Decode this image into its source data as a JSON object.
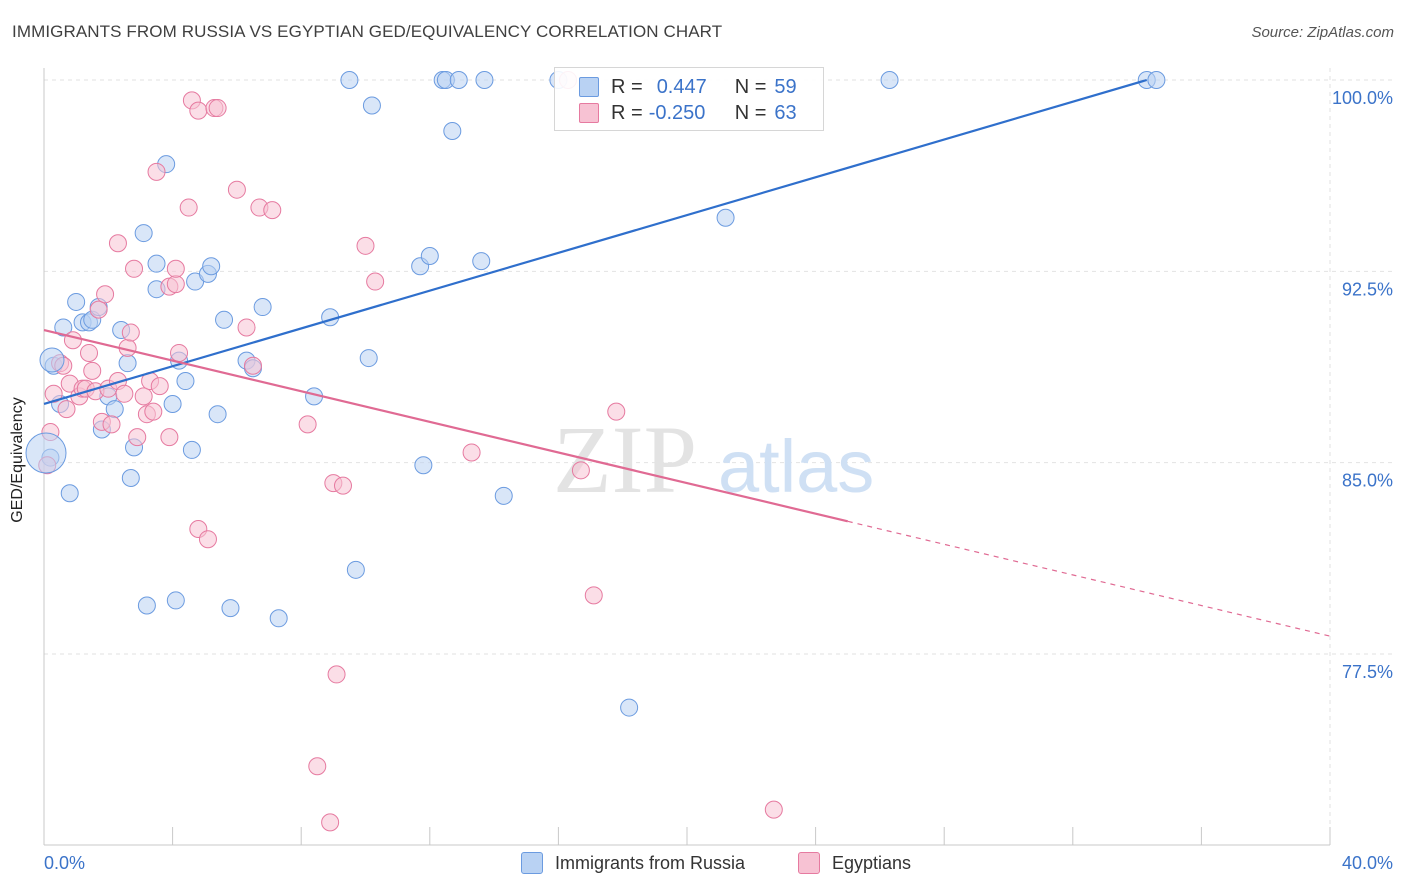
{
  "header": {
    "title": "IMMIGRANTS FROM RUSSIA VS EGYPTIAN GED/EQUIVALENCY CORRELATION CHART",
    "source": "Source: ZipAtlas.com"
  },
  "legend": {
    "r_label": "R =",
    "n_label": "N =",
    "series": [
      {
        "name": "Immigrants from Russia",
        "r": "0.447",
        "n": "59",
        "color": "#6b9be0",
        "fill": "#b9d2f3"
      },
      {
        "name": "Egyptians",
        "r": "-0.250",
        "n": "63",
        "color": "#e67aa0",
        "fill": "#f7c2d3"
      }
    ]
  },
  "colors": {
    "blue_line": "#2f6fcc",
    "pink_line": "#e06a93",
    "axis_text": "#3b73c9",
    "grid": "#e2e2e2"
  },
  "watermark": {
    "part1": "ZIP",
    "part2": "atlas"
  },
  "chart_data": {
    "type": "scatter",
    "title": "IMMIGRANTS FROM RUSSIA VS EGYPTIAN GED/EQUIVALENCY CORRELATION CHART",
    "xlabel": "",
    "ylabel": "GED/Equivalency",
    "xlim": [
      0,
      40
    ],
    "ylim": [
      70.5,
      101.5
    ],
    "x_tick_labels": [
      "0.0%",
      "40.0%"
    ],
    "y_ticks": [
      77.5,
      85.0,
      92.5,
      100.0
    ],
    "y_tick_labels": [
      "77.5%",
      "85.0%",
      "92.5%",
      "100.0%"
    ],
    "grid": true,
    "legend_position": "top-center",
    "series": [
      {
        "name": "Immigrants from Russia",
        "r": 0.447,
        "n": 59,
        "trend": {
          "x": [
            0.0,
            34.3
          ],
          "y": [
            87.3,
            100.0
          ]
        },
        "points": [
          [
            0.2,
            85.2
          ],
          [
            0.3,
            88.8
          ],
          [
            0.5,
            87.3
          ],
          [
            0.6,
            90.3
          ],
          [
            0.8,
            83.8
          ],
          [
            1.0,
            91.3
          ],
          [
            1.2,
            90.5
          ],
          [
            1.4,
            90.5
          ],
          [
            1.5,
            90.6
          ],
          [
            1.7,
            91.1
          ],
          [
            1.8,
            86.3
          ],
          [
            2.0,
            87.6
          ],
          [
            2.2,
            87.1
          ],
          [
            2.4,
            90.2
          ],
          [
            2.6,
            88.9
          ],
          [
            2.7,
            84.4
          ],
          [
            2.8,
            85.6
          ],
          [
            3.1,
            94.0
          ],
          [
            3.2,
            79.4
          ],
          [
            3.5,
            91.8
          ],
          [
            3.5,
            92.8
          ],
          [
            3.8,
            96.7
          ],
          [
            4.0,
            87.3
          ],
          [
            4.1,
            79.6
          ],
          [
            4.2,
            89.0
          ],
          [
            4.4,
            88.2
          ],
          [
            4.6,
            85.5
          ],
          [
            4.7,
            92.1
          ],
          [
            5.1,
            92.4
          ],
          [
            5.2,
            92.7
          ],
          [
            5.4,
            86.9
          ],
          [
            5.6,
            90.6
          ],
          [
            5.8,
            79.3
          ],
          [
            6.3,
            89.0
          ],
          [
            6.5,
            88.7
          ],
          [
            6.8,
            91.1
          ],
          [
            7.3,
            78.9
          ],
          [
            8.4,
            87.6
          ],
          [
            8.9,
            90.7
          ],
          [
            9.5,
            100.0
          ],
          [
            9.7,
            80.8
          ],
          [
            10.1,
            89.1
          ],
          [
            10.2,
            99.0
          ],
          [
            11.7,
            92.7
          ],
          [
            11.8,
            84.9
          ],
          [
            12.0,
            93.1
          ],
          [
            12.4,
            100.0
          ],
          [
            12.5,
            100.0
          ],
          [
            12.7,
            98.0
          ],
          [
            12.9,
            100.0
          ],
          [
            13.6,
            92.9
          ],
          [
            13.7,
            100.0
          ],
          [
            14.3,
            83.7
          ],
          [
            16.0,
            100.0
          ],
          [
            18.2,
            75.4
          ],
          [
            21.2,
            94.6
          ],
          [
            26.3,
            100.0
          ],
          [
            34.3,
            100.0
          ],
          [
            34.6,
            100.0
          ]
        ]
      },
      {
        "name": "Egyptians",
        "r": -0.25,
        "n": 63,
        "trend": {
          "x": [
            0.0,
            25.0
          ],
          "y": [
            90.2,
            82.7
          ]
        },
        "trend_extension": {
          "x": [
            25.0,
            40.0
          ],
          "y": [
            82.7,
            78.2
          ]
        },
        "points": [
          [
            0.1,
            84.9
          ],
          [
            0.2,
            86.2
          ],
          [
            0.3,
            87.7
          ],
          [
            0.5,
            88.9
          ],
          [
            0.6,
            88.8
          ],
          [
            0.7,
            87.1
          ],
          [
            0.8,
            88.1
          ],
          [
            0.9,
            89.8
          ],
          [
            1.1,
            87.6
          ],
          [
            1.2,
            87.9
          ],
          [
            1.3,
            87.9
          ],
          [
            1.4,
            89.3
          ],
          [
            1.5,
            88.6
          ],
          [
            1.6,
            87.8
          ],
          [
            1.7,
            91.0
          ],
          [
            1.8,
            86.6
          ],
          [
            1.9,
            91.6
          ],
          [
            2.0,
            87.9
          ],
          [
            2.1,
            86.5
          ],
          [
            2.3,
            88.2
          ],
          [
            2.3,
            93.6
          ],
          [
            2.5,
            87.7
          ],
          [
            2.6,
            89.5
          ],
          [
            2.7,
            90.1
          ],
          [
            2.8,
            92.6
          ],
          [
            2.9,
            86.0
          ],
          [
            3.1,
            87.6
          ],
          [
            3.2,
            86.9
          ],
          [
            3.3,
            88.2
          ],
          [
            3.4,
            87.0
          ],
          [
            3.5,
            96.4
          ],
          [
            3.6,
            88.0
          ],
          [
            3.9,
            91.9
          ],
          [
            3.9,
            86.0
          ],
          [
            4.1,
            92.0
          ],
          [
            4.1,
            92.6
          ],
          [
            4.2,
            89.3
          ],
          [
            4.5,
            95.0
          ],
          [
            4.6,
            99.2
          ],
          [
            4.8,
            82.4
          ],
          [
            4.8,
            98.8
          ],
          [
            5.1,
            82.0
          ],
          [
            5.3,
            98.9
          ],
          [
            5.4,
            98.9
          ],
          [
            6.0,
            95.7
          ],
          [
            6.3,
            90.3
          ],
          [
            6.5,
            88.8
          ],
          [
            6.7,
            95.0
          ],
          [
            7.1,
            94.9
          ],
          [
            8.2,
            86.5
          ],
          [
            8.5,
            73.1
          ],
          [
            8.9,
            70.9
          ],
          [
            9.0,
            84.2
          ],
          [
            9.1,
            76.7
          ],
          [
            9.3,
            84.1
          ],
          [
            10.0,
            93.5
          ],
          [
            10.3,
            92.1
          ],
          [
            13.3,
            85.4
          ],
          [
            16.3,
            100.0
          ],
          [
            16.7,
            84.7
          ],
          [
            17.1,
            79.8
          ],
          [
            17.8,
            87.0
          ],
          [
            22.7,
            71.4
          ]
        ]
      }
    ]
  }
}
